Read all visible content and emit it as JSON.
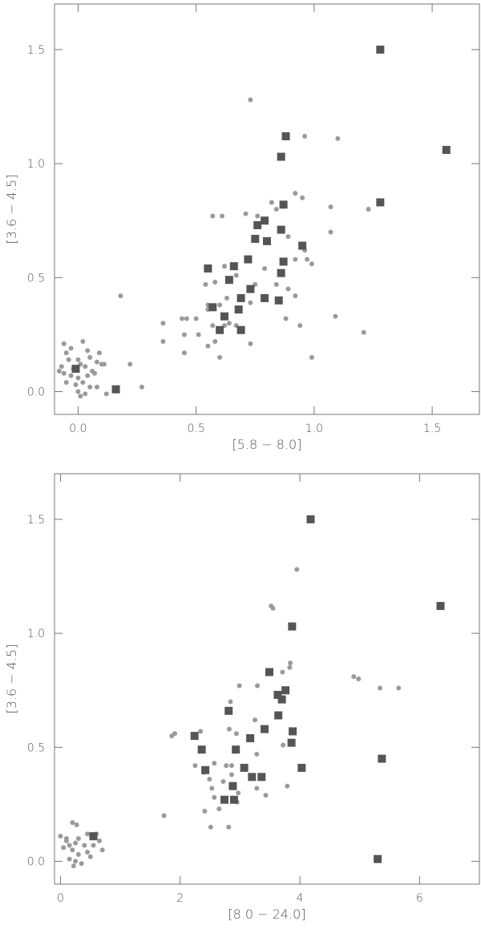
{
  "chart_data": [
    {
      "type": "scatter",
      "xlabel": "[5.8 − 8.0]",
      "ylabel": "[3.6 − 4.5]",
      "xlim": [
        -0.1,
        1.7
      ],
      "ylim": [
        -0.1,
        1.7
      ],
      "xticks": [
        {
          "value": 0,
          "label": "0.0"
        },
        {
          "value": 0.5,
          "label": "0.5"
        },
        {
          "value": 1,
          "label": "1.0"
        },
        {
          "value": 1.5,
          "label": "1.5"
        }
      ],
      "yticks": [
        {
          "value": 0,
          "label": "0.0"
        },
        {
          "value": 0.5,
          "label": "0.5"
        },
        {
          "value": 1,
          "label": "1.0"
        },
        {
          "value": 1.5,
          "label": "1.5"
        }
      ],
      "series": [
        {
          "marker": "circle",
          "color": "#9a9a9a",
          "x": [
            0.73,
            0.96,
            1.1,
            0.92,
            0.95,
            0.82,
            1.07,
            1.23,
            0.57,
            0.61,
            0.71,
            0.76,
            0.84,
            1.07,
            0.89,
            0.96,
            0.97,
            0.99,
            0.92,
            0.62,
            0.67,
            0.79,
            0.54,
            0.58,
            0.75,
            0.84,
            0.89,
            0.92,
            0.18,
            0.73,
            0.6,
            0.63,
            0.55,
            0.55,
            0.46,
            0.5,
            0.44,
            0.45,
            0.51,
            0.62,
            0.67,
            0.64,
            0.57,
            0.45,
            0.55,
            0.58,
            0.6,
            0.73,
            0.88,
            0.94,
            1.09,
            1.21,
            0.99,
            0.36,
            0.36,
            0.22,
            0.27,
            0.12,
            -0.06,
            -0.05,
            -0.03,
            0.02,
            0.04,
            0.09,
            -0.04,
            0.0,
            0.05,
            0.08,
            0.1,
            -0.07,
            -0.02,
            0.01,
            0.03,
            0.06,
            -0.06,
            -0.03,
            0.0,
            0.04,
            0.07,
            -0.05,
            -0.01,
            0.02,
            0.05,
            0.0,
            0.03,
            0.08,
            0.11,
            -0.08,
            0.01
          ],
          "values": [
            1.28,
            1.12,
            1.11,
            0.87,
            0.85,
            0.83,
            0.81,
            0.8,
            0.77,
            0.77,
            0.78,
            0.77,
            0.8,
            0.7,
            0.68,
            0.62,
            0.58,
            0.56,
            0.58,
            0.55,
            0.51,
            0.54,
            0.47,
            0.48,
            0.47,
            0.47,
            0.45,
            0.42,
            0.42,
            0.39,
            0.38,
            0.41,
            0.38,
            0.36,
            0.32,
            0.32,
            0.32,
            0.25,
            0.25,
            0.29,
            0.29,
            0.3,
            0.29,
            0.17,
            0.2,
            0.22,
            0.15,
            0.21,
            0.32,
            0.29,
            0.33,
            0.26,
            0.15,
            0.3,
            0.22,
            0.12,
            0.02,
            -0.01,
            0.21,
            0.17,
            0.19,
            0.22,
            0.18,
            0.17,
            0.14,
            0.14,
            0.15,
            0.13,
            0.12,
            0.11,
            0.1,
            0.12,
            0.11,
            0.09,
            0.08,
            0.07,
            0.06,
            0.07,
            0.08,
            0.04,
            0.03,
            0.04,
            0.02,
            0.0,
            -0.01,
            0.02,
            0.12,
            0.09,
            -0.02
          ]
        },
        {
          "marker": "square",
          "color": "#555555",
          "x": [
            1.28,
            1.56,
            0.88,
            0.86,
            0.87,
            1.28,
            0.79,
            0.76,
            0.86,
            0.75,
            0.8,
            0.95,
            0.72,
            0.87,
            0.66,
            0.55,
            0.86,
            0.64,
            0.73,
            0.69,
            0.79,
            0.85,
            0.57,
            0.68,
            0.62,
            0.6,
            0.69,
            0.16,
            -0.01
          ],
          "values": [
            1.5,
            1.06,
            1.12,
            1.03,
            0.82,
            0.83,
            0.75,
            0.73,
            0.71,
            0.67,
            0.66,
            0.64,
            0.58,
            0.57,
            0.55,
            0.54,
            0.52,
            0.49,
            0.45,
            0.41,
            0.41,
            0.4,
            0.37,
            0.36,
            0.33,
            0.27,
            0.27,
            0.01,
            0.1
          ]
        }
      ]
    },
    {
      "type": "scatter",
      "xlabel": "[8.0 − 24.0]",
      "ylabel": "[3.6 − 4.5]",
      "xlim": [
        -0.1,
        7
      ],
      "ylim": [
        -0.1,
        1.7
      ],
      "xticks": [
        0,
        2,
        4,
        6
      ],
      "yticks": [
        {
          "value": 0,
          "label": "0.0"
        },
        {
          "value": 0.5,
          "label": "0.5"
        },
        {
          "value": 1,
          "label": "1.0"
        },
        {
          "value": 1.5,
          "label": "1.5"
        }
      ],
      "series": [
        {
          "marker": "circle",
          "color": "#9a9a9a",
          "x": [
            3.95,
            3.52,
            3.55,
            3.84,
            3.83,
            3.71,
            3.29,
            2.99,
            4.9,
            4.98,
            5.34,
            5.65,
            2.84,
            1.91,
            1.86,
            2.34,
            2.82,
            2.94,
            3.25,
            3.72,
            3.28,
            2.25,
            2.57,
            2.77,
            2.86,
            2.4,
            2.86,
            2.49,
            2.72,
            3.28,
            3.43,
            3.79,
            2.53,
            2.57,
            2.97,
            2.95,
            2.41,
            2.65,
            2.51,
            2.81,
            1.73,
            0.2,
            0.27,
            0.45,
            0.6,
            0.0,
            0.1,
            0.3,
            0.65,
            0.15,
            0.25,
            0.4,
            0.05,
            0.55,
            0.7,
            0.2,
            0.3,
            0.45,
            0.15,
            0.25,
            0.35,
            0.22,
            0.1,
            0.5
          ],
          "values": [
            1.28,
            1.12,
            1.11,
            0.87,
            0.85,
            0.83,
            0.77,
            0.77,
            0.81,
            0.8,
            0.76,
            0.76,
            0.7,
            0.56,
            0.55,
            0.57,
            0.58,
            0.56,
            0.62,
            0.51,
            0.47,
            0.42,
            0.43,
            0.42,
            0.42,
            0.39,
            0.38,
            0.36,
            0.35,
            0.32,
            0.29,
            0.33,
            0.32,
            0.28,
            0.3,
            0.26,
            0.22,
            0.23,
            0.15,
            0.15,
            0.2,
            0.17,
            0.16,
            0.12,
            0.12,
            0.11,
            0.1,
            0.1,
            0.09,
            0.07,
            0.08,
            0.07,
            0.06,
            0.07,
            0.05,
            0.05,
            0.03,
            0.04,
            0.01,
            0.0,
            -0.01,
            -0.02,
            0.09,
            0.02
          ]
        },
        {
          "marker": "square",
          "color": "#555555",
          "x": [
            4.18,
            6.35,
            3.87,
            3.49,
            3.76,
            3.63,
            3.7,
            2.81,
            3.64,
            3.41,
            3.88,
            2.24,
            3.17,
            3.86,
            2.36,
            2.93,
            5.37,
            3.07,
            4.03,
            2.42,
            3.2,
            3.36,
            2.88,
            2.74,
            2.9,
            5.3,
            0.55
          ],
          "values": [
            1.5,
            1.12,
            1.03,
            0.83,
            0.75,
            0.73,
            0.71,
            0.66,
            0.64,
            0.58,
            0.57,
            0.55,
            0.54,
            0.52,
            0.49,
            0.49,
            0.45,
            0.41,
            0.41,
            0.4,
            0.37,
            0.37,
            0.33,
            0.27,
            0.27,
            0.01,
            0.11
          ]
        }
      ]
    }
  ]
}
